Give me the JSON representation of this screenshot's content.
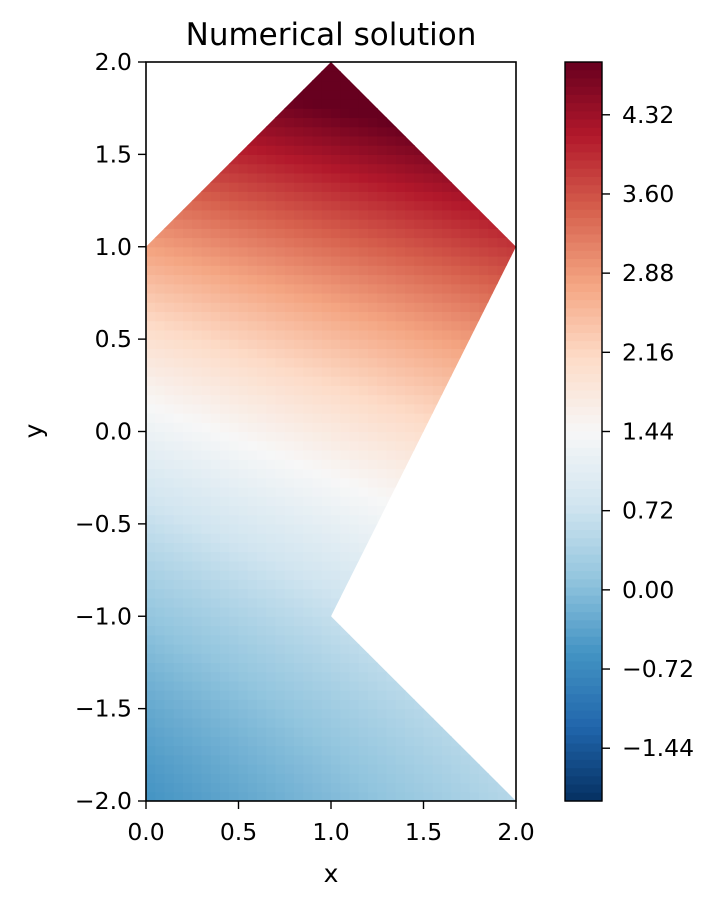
{
  "chart_data": {
    "type": "heatmap",
    "title": "Numerical solution",
    "xlabel": "x",
    "ylabel": "y",
    "xlim": [
      0.0,
      2.0
    ],
    "ylim": [
      -2.0,
      2.0
    ],
    "grid": false,
    "x_ticks": [
      "0.0",
      "0.5",
      "1.0",
      "1.5",
      "2.0"
    ],
    "y_ticks": [
      "2.0",
      "1.5",
      "1.0",
      "0.5",
      "0.0",
      "−0.5",
      "−1.0",
      "−1.5",
      "−2.0"
    ],
    "domain_polygon": [
      [
        0,
        -2
      ],
      [
        2,
        -2
      ],
      [
        1,
        -1
      ],
      [
        2,
        1
      ],
      [
        1,
        2
      ],
      [
        0,
        1
      ]
    ],
    "colormap": "RdBu_r",
    "colorbar": {
      "range": [
        -1.92,
        4.8
      ],
      "ticks": [
        4.32,
        3.6,
        2.88,
        2.16,
        1.44,
        0.72,
        0.0,
        -0.72,
        -1.44
      ],
      "tick_labels": [
        "4.32",
        "3.60",
        "2.88",
        "2.16",
        "1.44",
        "0.72",
        "0.00",
        "−0.72",
        "−1.44"
      ],
      "colors": [
        "#053061",
        "#2166ac",
        "#4393c3",
        "#92c5de",
        "#d1e5f0",
        "#f7f7f7",
        "#fddbc7",
        "#f4a582",
        "#d6604d",
        "#b2182b",
        "#67001f"
      ]
    }
  }
}
